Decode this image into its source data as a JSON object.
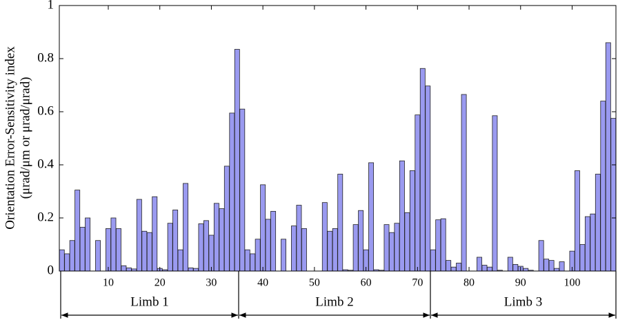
{
  "chart_data": {
    "type": "bar",
    "ylabel": [
      "Orientation Error-Sensitivity index",
      "(μrad/μm or μrad/μrad)"
    ],
    "x": [
      1,
      2,
      3,
      4,
      5,
      6,
      7,
      8,
      9,
      10,
      11,
      12,
      13,
      14,
      15,
      16,
      17,
      18,
      19,
      20,
      21,
      22,
      23,
      24,
      25,
      26,
      27,
      28,
      29,
      30,
      31,
      32,
      33,
      34,
      35,
      36,
      37,
      38,
      39,
      40,
      41,
      42,
      43,
      44,
      45,
      46,
      47,
      48,
      49,
      50,
      51,
      52,
      53,
      54,
      55,
      56,
      57,
      58,
      59,
      60,
      61,
      62,
      63,
      64,
      65,
      66,
      67,
      68,
      69,
      70,
      71,
      72,
      73,
      74,
      75,
      76,
      77,
      78,
      79,
      80,
      81,
      82,
      83,
      84,
      85,
      86,
      87,
      88,
      89,
      90,
      91,
      92,
      93,
      94,
      95,
      96,
      97,
      98,
      99,
      100,
      101,
      102,
      103,
      104,
      105,
      106,
      107,
      108
    ],
    "values": [
      0.08,
      0.065,
      0.115,
      0.305,
      0.165,
      0.2,
      0,
      0.115,
      0,
      0.16,
      0.2,
      0.16,
      0.02,
      0.012,
      0.008,
      0.27,
      0.15,
      0.145,
      0.28,
      0.01,
      0.005,
      0.18,
      0.23,
      0.08,
      0.33,
      0.012,
      0.01,
      0.178,
      0.19,
      0.135,
      0.255,
      0.235,
      0.395,
      0.595,
      0.835,
      0.61,
      0.08,
      0.065,
      0.12,
      0.325,
      0.195,
      0.225,
      0,
      0.12,
      0,
      0.17,
      0.248,
      0.16,
      0,
      0,
      0,
      0.258,
      0.15,
      0.16,
      0.365,
      0.005,
      0.003,
      0.175,
      0.228,
      0.08,
      0.408,
      0.005,
      0.003,
      0.175,
      0.145,
      0.18,
      0.415,
      0.22,
      0.378,
      0.588,
      0.763,
      0.697,
      0.08,
      0.193,
      0.197,
      0.04,
      0.015,
      0.03,
      0.665,
      0,
      0,
      0.052,
      0.022,
      0.015,
      0.585,
      0.003,
      0,
      0.052,
      0.025,
      0.018,
      0.01,
      0.003,
      0,
      0.115,
      0.045,
      0.04,
      0.01,
      0.035,
      0,
      0.075,
      0.378,
      0.1,
      0.205,
      0.215,
      0.365,
      0.64,
      0.86,
      0.575
    ],
    "color": "#9a9af0",
    "xlim": [
      0.5,
      108.5
    ],
    "xticks": [
      10,
      20,
      30,
      40,
      50,
      60,
      70,
      80,
      90,
      100
    ],
    "ylim": [
      0,
      1
    ],
    "yticks": [
      0,
      0.2,
      0.4,
      0.6,
      0.8,
      1
    ],
    "annotations": [
      "Limb 1",
      "Limb 2",
      "Limb 3"
    ]
  }
}
